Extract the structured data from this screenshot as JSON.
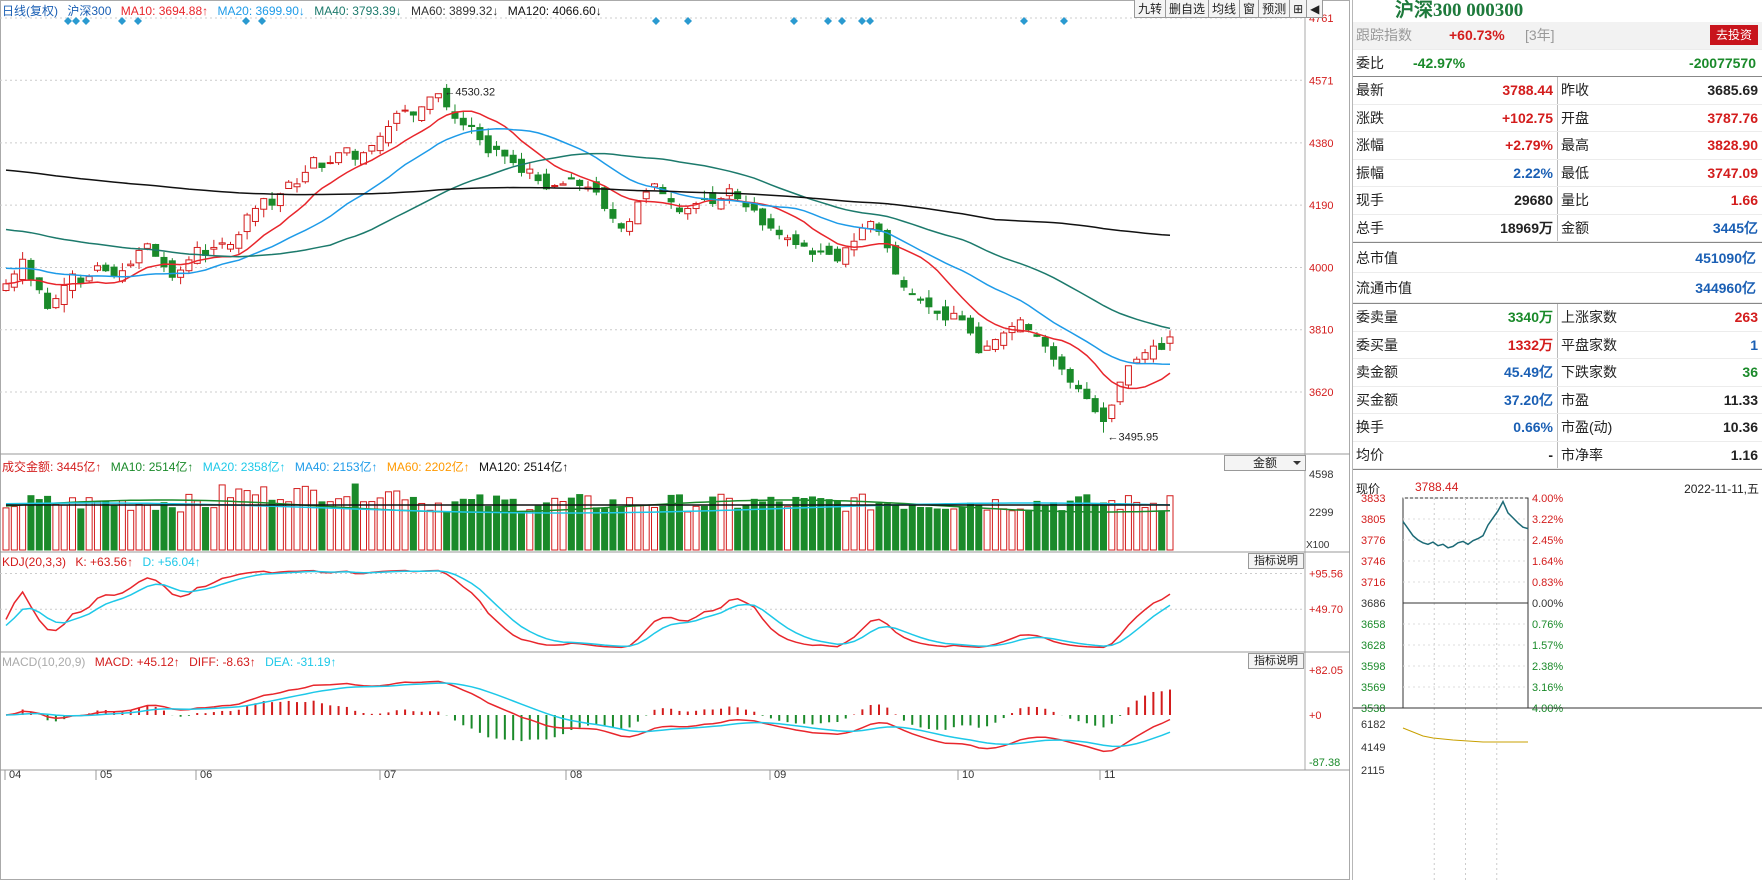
{
  "indicator_bar": {
    "period": "日线(复权)",
    "symbol": "沪深300",
    "ma10": "MA10: 3694.88↑",
    "ma20": "MA20: 3699.90↓",
    "ma40": "MA40: 3793.39↓",
    "ma60": "MA60: 3899.32↓",
    "ma120": "MA120: 4066.60↓"
  },
  "toolbar": [
    "九转",
    "删自选",
    "均线",
    "窗",
    "预测",
    "⊞",
    "◀"
  ],
  "colors": {
    "up": "#d31c1c",
    "down": "#1a8a2a",
    "ma10": "#e8262c",
    "ma20": "#1e9be8",
    "ma40": "#1c7a6c",
    "ma60": "#ff9900",
    "ma120": "#111111",
    "kdj_k": "#e8262c",
    "kdj_d": "#1ec8e8"
  },
  "chart_data": {
    "type": "candlestick",
    "price_axis": [
      "4761",
      "4571",
      "4380",
      "4190",
      "4000",
      "3810",
      "3620"
    ],
    "x_labels": [
      "04",
      "05",
      "06",
      "07",
      "08",
      "09",
      "10",
      "11"
    ],
    "high_label": "4530.32",
    "low_label": "3495.95",
    "closes": [
      3950,
      3980,
      4025,
      3962,
      3932,
      3875,
      3905,
      3945,
      3980,
      3952,
      3972,
      4005,
      3990,
      3975,
      3990,
      4010,
      4052,
      4072,
      4034,
      4002,
      3970,
      3992,
      4023,
      4061,
      4037,
      4061,
      4075,
      4070,
      4100,
      4160,
      4180,
      4210,
      4190,
      4225,
      4260,
      4255,
      4290,
      4335,
      4305,
      4320,
      4350,
      4365,
      4330,
      4350,
      4372,
      4400,
      4430,
      4470,
      4480,
      4465,
      4490,
      4520,
      4530,
      4490,
      4455,
      4435,
      4430,
      4390,
      4350,
      4360,
      4340,
      4320,
      4290,
      4300,
      4265,
      4240,
      4250,
      4255,
      4270,
      4250,
      4245,
      4230,
      4180,
      4150,
      4120,
      4140,
      4200,
      4230,
      4255,
      4225,
      4200,
      4170,
      4180,
      4195,
      4210,
      4195,
      4210,
      4240,
      4210,
      4185,
      4175,
      4130,
      4120,
      4100,
      4090,
      4070,
      4065,
      4040,
      4050,
      4040,
      4020,
      4060,
      4080,
      4120,
      4140,
      4110,
      4060,
      3980,
      3940,
      3920,
      3900,
      3880,
      3860,
      3840,
      3860,
      3840,
      3800,
      3740,
      3760,
      3780,
      3800,
      3820,
      3840,
      3810,
      3790,
      3760,
      3720,
      3690,
      3650,
      3630,
      3600,
      3560,
      3530,
      3580,
      3650,
      3700,
      3720,
      3740,
      3760,
      3750,
      3788
    ],
    "volume_axis": [
      "4598",
      "2299"
    ],
    "volume_multiplier": "X100",
    "kdj_axis": [
      "+95.56",
      "+49.70"
    ],
    "macd_axis": [
      "+82.05",
      "+0",
      "-87.38"
    ]
  },
  "volume_bar": {
    "label": "成交金额: 3445亿↑",
    "ma10": "MA10: 2514亿↑",
    "ma20": "MA20: 2358亿↑",
    "ma40": "MA40: 2153亿↑",
    "ma60": "MA60: 2202亿↑",
    "ma120": "MA120: 2514亿↑"
  },
  "volume_selector": "金额",
  "kdj_bar": {
    "label": "KDJ(20,3,3)",
    "k": "K: +63.56↑",
    "d": "D: +56.04↑"
  },
  "macd_bar": {
    "label": "MACD(10,20,9)",
    "macd": "MACD: +45.12↑",
    "diff": "DIFF: -8.63↑",
    "dea": "DEA: -31.19↑"
  },
  "indicator_help": "指标说明",
  "quote": {
    "title": "沪深300 000300",
    "track_label": "跟踪指数",
    "track_value": "+60.73%",
    "track_period": "[3年]",
    "invest_button": "去投资",
    "weibi_label": "委比",
    "weibi_pct": "-42.97%",
    "weibi_val": "-20077570",
    "pairs": [
      [
        "最新",
        "3788.44",
        "red",
        "昨收",
        "3685.69",
        "blk"
      ],
      [
        "涨跌",
        "+102.75",
        "red",
        "开盘",
        "3787.76",
        "red"
      ],
      [
        "涨幅",
        "+2.79%",
        "red",
        "最高",
        "3828.90",
        "red"
      ],
      [
        "振幅",
        "2.22%",
        "blu",
        "最低",
        "3747.09",
        "red"
      ],
      [
        "现手",
        "29680",
        "blk",
        "量比",
        "1.66",
        "red"
      ],
      [
        "总手",
        "18969万",
        "blk",
        "金额",
        "3445亿",
        "blu"
      ]
    ],
    "cap": [
      [
        "总市值",
        "451090亿"
      ],
      [
        "流通市值",
        "344960亿"
      ]
    ],
    "pairs2": [
      [
        "委卖量",
        "3340万",
        "grn",
        "上涨家数",
        "263",
        "red"
      ],
      [
        "委买量",
        "1332万",
        "red",
        "平盘家数",
        "1",
        "blu"
      ],
      [
        "卖金额",
        "45.49亿",
        "blu",
        "下跌家数",
        "36",
        "grn"
      ],
      [
        "买金额",
        "37.20亿",
        "blu",
        "市盈",
        "11.33",
        "blk"
      ],
      [
        "换手",
        "0.66%",
        "blu",
        "市盈(动)",
        "10.36",
        "blk"
      ],
      [
        "均价",
        "-",
        "blk",
        "市净率",
        "1.16",
        "blk"
      ]
    ]
  },
  "minute": {
    "price_label": "现价",
    "price": "3788.44",
    "date": "2022-11-11,五",
    "left_axis": [
      "3833",
      "3805",
      "3776",
      "3746",
      "3716",
      "3686",
      "3658",
      "3628",
      "3598",
      "3569",
      "3538"
    ],
    "right_axis": [
      "4.00%",
      "3.22%",
      "2.45%",
      "1.64%",
      "0.83%",
      "0.00%",
      "0.76%",
      "1.57%",
      "2.38%",
      "3.16%",
      "4.00%"
    ],
    "vol_axis": [
      "6182",
      "4149",
      "2115"
    ]
  }
}
